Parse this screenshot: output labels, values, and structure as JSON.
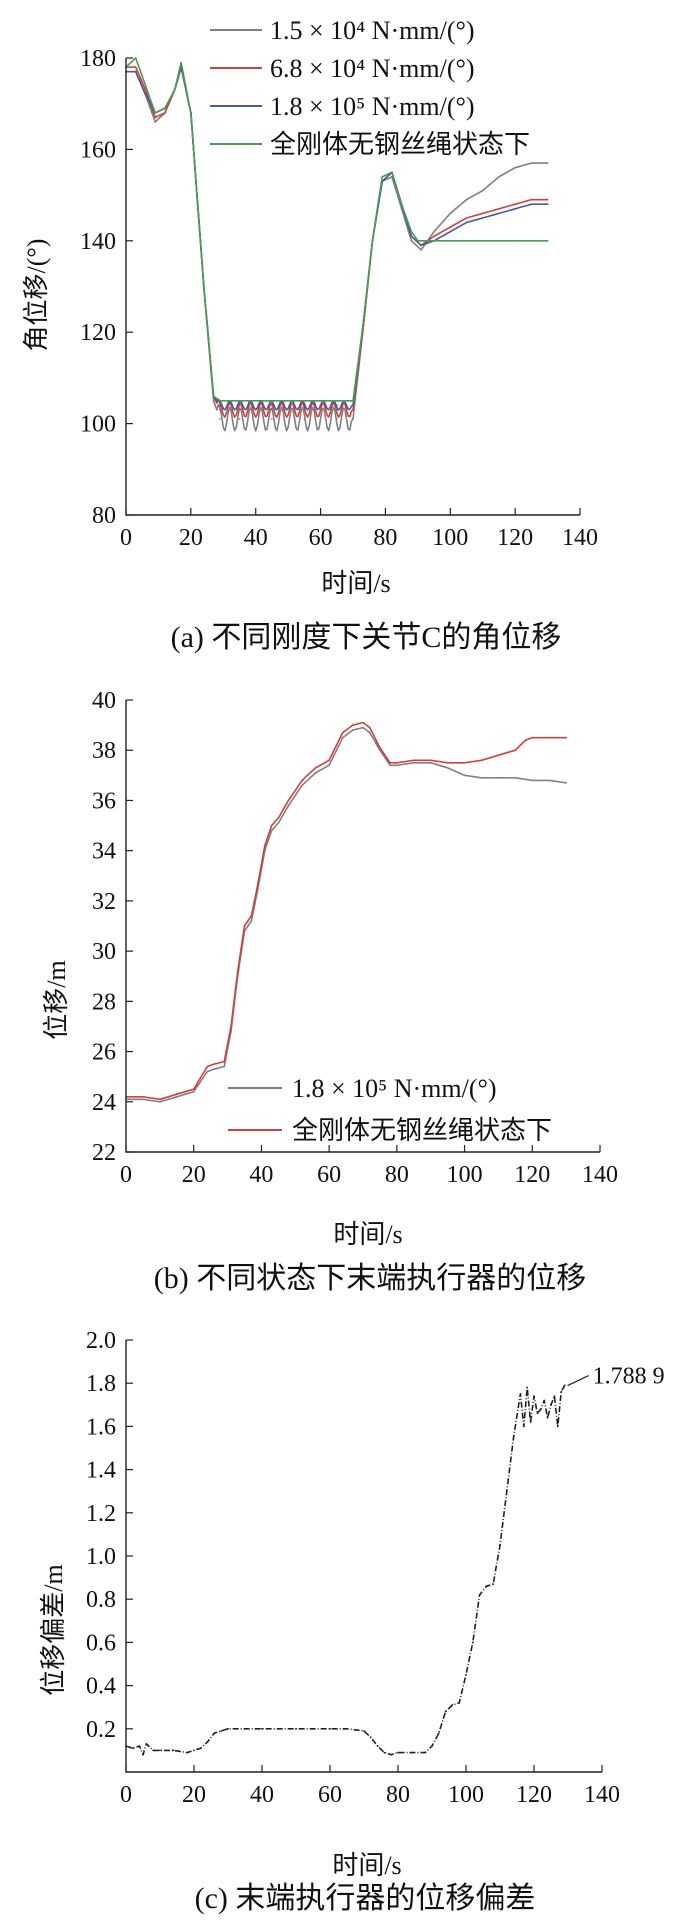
{
  "chart_data": [
    {
      "id": "a",
      "type": "line",
      "caption": "(a)  不同刚度下关节C的角位移",
      "xlabel": "时间/s",
      "ylabel": "角位移/(°)",
      "xlim": [
        0,
        140
      ],
      "ylim": [
        80,
        180
      ],
      "xticks": [
        0,
        20,
        40,
        60,
        80,
        100,
        120,
        140
      ],
      "yticks": [
        80,
        100,
        120,
        140,
        160,
        180
      ],
      "legend_position": "top",
      "grid": false,
      "series": [
        {
          "name": "1.5 × 10⁴ N·mm/(°)",
          "color": "#808080",
          "wobble": 2.6,
          "x": [
            0,
            3,
            6,
            9,
            12,
            15,
            17,
            20,
            24,
            27,
            29,
            35,
            45,
            55,
            65,
            70,
            73,
            76,
            79,
            82,
            85,
            88,
            91,
            95,
            100,
            105,
            110,
            115,
            120,
            125,
            130
          ],
          "y": [
            177,
            177,
            172,
            166,
            168,
            173,
            178,
            168,
            130,
            105,
            101,
            101,
            101,
            101,
            101,
            101,
            120,
            140,
            153,
            154,
            147,
            140,
            138,
            142,
            146,
            149,
            151,
            154,
            156,
            157,
            157
          ]
        },
        {
          "name": "6.8 × 10⁴ N·mm/(°)",
          "color": "#d04040",
          "wobble": 1.6,
          "x": [
            0,
            3,
            6,
            9,
            12,
            15,
            17,
            20,
            24,
            27,
            29,
            35,
            45,
            55,
            65,
            70,
            73,
            76,
            79,
            82,
            85,
            88,
            91,
            95,
            100,
            105,
            110,
            115,
            120,
            125,
            130
          ],
          "y": [
            178,
            178,
            173,
            167,
            168,
            173,
            178,
            168,
            130,
            106,
            103,
            103,
            103,
            103,
            103,
            103,
            120,
            140,
            153,
            155,
            148,
            141,
            139,
            141,
            143,
            145,
            146,
            147,
            148,
            149,
            149
          ]
        },
        {
          "name": "1.8 × 10⁵ N·mm/(°)",
          "color": "#4a5a9a",
          "wobble": 1.0,
          "x": [
            0,
            3,
            6,
            9,
            12,
            15,
            17,
            20,
            24,
            27,
            29,
            35,
            45,
            55,
            65,
            70,
            73,
            76,
            79,
            82,
            85,
            88,
            91,
            95,
            100,
            105,
            110,
            115,
            120,
            125,
            130
          ],
          "y": [
            177,
            177,
            172,
            168,
            169,
            173,
            178,
            168,
            130,
            106,
            104,
            104,
            104,
            104,
            104,
            104,
            121,
            140,
            153,
            155,
            148,
            141,
            139,
            140,
            142,
            144,
            145,
            146,
            147,
            148,
            148
          ]
        },
        {
          "name": "全刚体无钢丝绳状态下",
          "color": "#4a9a5a",
          "wobble": 0,
          "x": [
            0,
            3,
            6,
            9,
            12,
            15,
            17,
            20,
            24,
            27,
            29,
            35,
            45,
            55,
            65,
            70,
            73,
            76,
            79,
            82,
            85,
            88,
            90,
            95,
            100,
            105,
            110,
            115,
            120,
            125,
            130
          ],
          "y": [
            178,
            180,
            174,
            168,
            169,
            173,
            179,
            168,
            130,
            106,
            105,
            105,
            105,
            105,
            105,
            105,
            121,
            140,
            154,
            155,
            148,
            142,
            140,
            140,
            140,
            140,
            140,
            140,
            140,
            140,
            140
          ]
        }
      ]
    },
    {
      "id": "b",
      "type": "line",
      "caption": "(b)  不同状态下末端执行器的位移",
      "xlabel": "时间/s",
      "ylabel": "位移/m",
      "xlim": [
        0,
        140
      ],
      "ylim": [
        22,
        40
      ],
      "xticks": [
        0,
        20,
        40,
        60,
        80,
        100,
        120,
        140
      ],
      "yticks": [
        22,
        24,
        26,
        28,
        30,
        32,
        34,
        36,
        38,
        40
      ],
      "legend_position": "bottom-right",
      "grid": false,
      "series": [
        {
          "name": "1.8 × 10⁵ N·mm/(°)",
          "color": "#808080",
          "wobble": 0,
          "x": [
            0,
            5,
            10,
            15,
            20,
            24,
            26,
            29,
            31,
            33,
            35,
            37,
            39,
            41,
            43,
            45,
            48,
            52,
            56,
            60,
            64,
            67,
            70,
            72,
            75,
            78,
            80,
            85,
            90,
            95,
            100,
            105,
            110,
            115,
            120,
            125,
            130
          ],
          "y": [
            24.1,
            24.1,
            24.0,
            24.2,
            24.4,
            25.2,
            25.3,
            25.4,
            26.8,
            29.0,
            30.8,
            31.2,
            32.5,
            34.0,
            34.8,
            35.1,
            35.8,
            36.6,
            37.1,
            37.4,
            38.5,
            38.8,
            38.9,
            38.7,
            38.0,
            37.4,
            37.4,
            37.5,
            37.5,
            37.3,
            37.0,
            36.9,
            36.9,
            36.9,
            36.8,
            36.8,
            36.7
          ]
        },
        {
          "name": "全刚体无钢丝绳状态下",
          "color": "#d04040",
          "wobble": 0,
          "x": [
            0,
            5,
            10,
            15,
            20,
            24,
            26,
            29,
            31,
            33,
            35,
            37,
            39,
            41,
            43,
            45,
            48,
            52,
            56,
            60,
            64,
            67,
            70,
            72,
            75,
            78,
            80,
            85,
            90,
            95,
            100,
            105,
            110,
            115,
            118,
            120,
            125,
            130
          ],
          "y": [
            24.2,
            24.2,
            24.1,
            24.3,
            24.5,
            25.4,
            25.5,
            25.6,
            27.0,
            29.2,
            31.0,
            31.4,
            32.7,
            34.2,
            35.0,
            35.3,
            36.0,
            36.8,
            37.3,
            37.6,
            38.7,
            39.0,
            39.1,
            38.9,
            38.1,
            37.5,
            37.5,
            37.6,
            37.6,
            37.5,
            37.5,
            37.6,
            37.8,
            38.0,
            38.4,
            38.5,
            38.5,
            38.5
          ]
        }
      ]
    },
    {
      "id": "c",
      "type": "line",
      "caption": "(c)  末端执行器的位移偏差",
      "xlabel": "时间/s",
      "ylabel": "位移偏差/m",
      "xlim": [
        0,
        140
      ],
      "ylim": [
        0,
        2.0
      ],
      "xticks": [
        0,
        20,
        40,
        60,
        80,
        100,
        120,
        140
      ],
      "yticks": [
        0.2,
        0.4,
        0.6,
        0.8,
        1.0,
        1.2,
        1.4,
        1.6,
        1.8,
        2.0
      ],
      "ytick_labels": [
        "0.2",
        "0.4",
        "0.6",
        "0.8",
        "1.0",
        "1.2",
        "1.4",
        "1.6",
        "1.8",
        "2.0"
      ],
      "xtick_labels": [
        "0",
        "20",
        "40",
        "60",
        "80",
        "100",
        "120",
        "140"
      ],
      "annotation": {
        "text": "1.788 9",
        "x": 129,
        "y": 1.7889
      },
      "grid": false,
      "series": [
        {
          "color": "#222222",
          "wobble": 0,
          "x": [
            0,
            2,
            4,
            5,
            6,
            8,
            10,
            14,
            18,
            20,
            22,
            24,
            26,
            28,
            30,
            35,
            40,
            45,
            50,
            55,
            60,
            65,
            70,
            72,
            74,
            76,
            78,
            80,
            84,
            88,
            90,
            92,
            94,
            96,
            98,
            100,
            102,
            104,
            106,
            108,
            110,
            112,
            114,
            116,
            117,
            118,
            119,
            120,
            121,
            122,
            123,
            124,
            125,
            126,
            127,
            128,
            129
          ],
          "y": [
            0.12,
            0.11,
            0.12,
            0.08,
            0.13,
            0.1,
            0.1,
            0.1,
            0.09,
            0.1,
            0.11,
            0.14,
            0.18,
            0.19,
            0.2,
            0.2,
            0.2,
            0.2,
            0.2,
            0.2,
            0.2,
            0.2,
            0.19,
            0.16,
            0.12,
            0.09,
            0.08,
            0.09,
            0.09,
            0.09,
            0.12,
            0.18,
            0.28,
            0.31,
            0.32,
            0.45,
            0.6,
            0.82,
            0.86,
            0.87,
            1.05,
            1.3,
            1.55,
            1.75,
            1.6,
            1.78,
            1.62,
            1.74,
            1.66,
            1.68,
            1.72,
            1.64,
            1.7,
            1.74,
            1.6,
            1.76,
            1.79
          ]
        }
      ]
    }
  ]
}
